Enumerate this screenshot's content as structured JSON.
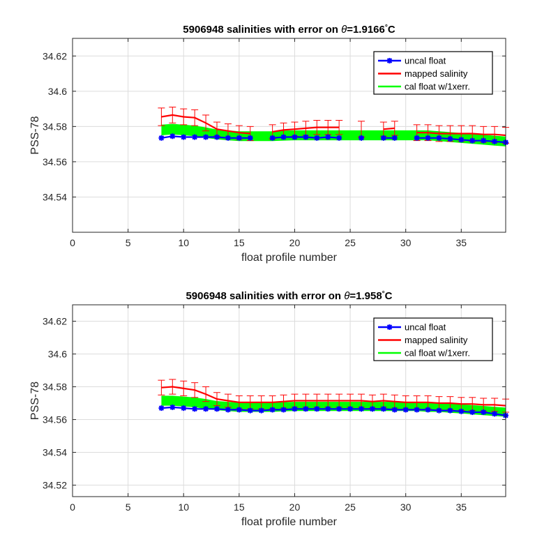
{
  "chart_data": [
    {
      "type": "line",
      "title_prefix": "5906948 salinities with error on ",
      "title_theta": "θ",
      "title_value": "=1.9166",
      "title_deg": "°",
      "title_unit": "C",
      "xlabel": "float profile number",
      "ylabel": "PSS-78",
      "xlim": [
        0,
        39
      ],
      "ylim": [
        34.52,
        34.63
      ],
      "xticks": [
        0,
        5,
        10,
        15,
        20,
        25,
        30,
        35
      ],
      "yticks": [
        34.54,
        34.56,
        34.58,
        34.6,
        34.62
      ],
      "ytick_labels": [
        "34.54",
        "34.56",
        "34.58",
        "34.6",
        "34.62"
      ],
      "grid": true,
      "legend_position": "top-right",
      "legend": [
        "uncal float",
        "mapped salinity",
        "cal float w/1xerr."
      ],
      "colors": {
        "uncal": "#0000ff",
        "mapped": "#ff0000",
        "cal": "#00ff00"
      },
      "x": [
        8,
        9,
        10,
        11,
        12,
        13,
        14,
        15,
        16,
        18,
        19,
        20,
        21,
        22,
        23,
        24,
        26,
        28,
        29,
        31,
        32,
        33,
        34,
        35,
        36,
        37,
        38,
        39
      ],
      "uncal_float": [
        34.5735,
        34.5745,
        34.574,
        34.574,
        34.574,
        34.574,
        34.5735,
        34.5735,
        34.5735,
        34.5735,
        34.574,
        34.574,
        34.574,
        34.5735,
        34.574,
        34.5735,
        34.5735,
        34.5735,
        34.5735,
        34.5735,
        34.5735,
        34.5735,
        34.573,
        34.5725,
        34.572,
        34.572,
        34.5715,
        34.571
      ],
      "mapped_salinity": [
        34.5855,
        34.5865,
        34.5855,
        34.585,
        34.582,
        34.5785,
        34.5775,
        34.5765,
        34.576,
        34.577,
        34.578,
        34.5785,
        34.579,
        34.5795,
        34.5795,
        34.5795,
        34.5785,
        34.5785,
        34.579,
        34.5765,
        34.5765,
        34.576,
        34.576,
        34.576,
        34.576,
        34.5755,
        34.5755,
        34.575
      ],
      "mapped_error": [
        0.005,
        0.0045,
        0.0045,
        0.0045,
        0.0045,
        0.004,
        0.004,
        0.004,
        0.004,
        0.004,
        0.004,
        0.004,
        0.004,
        0.004,
        0.004,
        0.004,
        0.0045,
        0.004,
        0.004,
        0.0045,
        0.0045,
        0.0045,
        0.0045,
        0.0045,
        0.0045,
        0.0045,
        0.0045,
        0.0045
      ],
      "cal_float": [
        34.578,
        34.5785,
        34.578,
        34.5775,
        34.5765,
        34.5755,
        34.575,
        34.5745,
        34.5745,
        34.5745,
        34.5748,
        34.575,
        34.575,
        34.575,
        34.575,
        34.575,
        34.575,
        34.575,
        34.575,
        34.575,
        34.575,
        34.5745,
        34.574,
        34.5735,
        34.573,
        34.5725,
        34.572,
        34.5715
      ],
      "cal_error": [
        0.003,
        0.003,
        0.003,
        0.003,
        0.003,
        0.0028,
        0.0028,
        0.0028,
        0.0028,
        0.0028,
        0.0028,
        0.0028,
        0.0028,
        0.0028,
        0.0028,
        0.0028,
        0.0028,
        0.0028,
        0.0028,
        0.0028,
        0.0028,
        0.0028,
        0.0028,
        0.0028,
        0.0028,
        0.0028,
        0.0028,
        0.0028
      ]
    },
    {
      "type": "line",
      "title_prefix": "5906948 salinities with error on ",
      "title_theta": "θ",
      "title_value": "=1.958",
      "title_deg": "°",
      "title_unit": "C",
      "xlabel": "float profile number",
      "ylabel": "PSS-78",
      "xlim": [
        0,
        39
      ],
      "ylim": [
        34.513,
        34.63
      ],
      "xticks": [
        0,
        5,
        10,
        15,
        20,
        25,
        30,
        35
      ],
      "yticks": [
        34.52,
        34.54,
        34.56,
        34.58,
        34.6,
        34.62
      ],
      "ytick_labels": [
        "34.52",
        "34.54",
        "34.56",
        "34.58",
        "34.6",
        "34.62"
      ],
      "grid": true,
      "legend_position": "top-right",
      "legend": [
        "uncal float",
        "mapped salinity",
        "cal float w/1xerr."
      ],
      "colors": {
        "uncal": "#0000ff",
        "mapped": "#ff0000",
        "cal": "#00ff00"
      },
      "x": [
        8,
        9,
        10,
        11,
        12,
        13,
        14,
        15,
        16,
        17,
        18,
        19,
        20,
        21,
        22,
        23,
        24,
        25,
        26,
        27,
        28,
        29,
        30,
        31,
        32,
        33,
        34,
        35,
        36,
        37,
        38,
        39
      ],
      "uncal_float": [
        34.567,
        34.5675,
        34.567,
        34.5665,
        34.5665,
        34.5665,
        34.566,
        34.566,
        34.5655,
        34.5655,
        34.566,
        34.566,
        34.5665,
        34.5665,
        34.5665,
        34.5665,
        34.5665,
        34.5665,
        34.5665,
        34.5665,
        34.5665,
        34.566,
        34.566,
        34.566,
        34.566,
        34.5655,
        34.5655,
        34.565,
        34.5645,
        34.5645,
        34.5635,
        34.5625
      ],
      "mapped_salinity": [
        34.5795,
        34.58,
        34.579,
        34.578,
        34.5755,
        34.5725,
        34.5715,
        34.5705,
        34.5705,
        34.5705,
        34.5705,
        34.571,
        34.5715,
        34.5715,
        34.5715,
        34.5715,
        34.5715,
        34.5715,
        34.5715,
        34.571,
        34.5715,
        34.571,
        34.5705,
        34.5705,
        34.5705,
        34.57,
        34.57,
        34.5695,
        34.5695,
        34.569,
        34.569,
        34.5685
      ],
      "mapped_error": [
        0.0045,
        0.0045,
        0.0045,
        0.0045,
        0.0045,
        0.004,
        0.004,
        0.004,
        0.004,
        0.004,
        0.004,
        0.004,
        0.004,
        0.004,
        0.004,
        0.004,
        0.004,
        0.004,
        0.004,
        0.004,
        0.004,
        0.004,
        0.004,
        0.004,
        0.004,
        0.004,
        0.004,
        0.004,
        0.004,
        0.004,
        0.004,
        0.004
      ],
      "cal_float": [
        34.5715,
        34.5715,
        34.571,
        34.5705,
        34.5695,
        34.5685,
        34.568,
        34.5675,
        34.5675,
        34.5675,
        34.5675,
        34.5678,
        34.568,
        34.568,
        34.568,
        34.568,
        34.568,
        34.568,
        34.568,
        34.568,
        34.568,
        34.568,
        34.568,
        34.568,
        34.5675,
        34.5675,
        34.567,
        34.5665,
        34.566,
        34.5655,
        34.565,
        34.5645
      ],
      "cal_error": [
        0.003,
        0.003,
        0.003,
        0.003,
        0.003,
        0.0028,
        0.0028,
        0.0028,
        0.0028,
        0.0028,
        0.0028,
        0.0028,
        0.0028,
        0.0028,
        0.0028,
        0.0028,
        0.0028,
        0.0028,
        0.0028,
        0.0028,
        0.0028,
        0.0028,
        0.0028,
        0.0028,
        0.0028,
        0.0028,
        0.0028,
        0.0028,
        0.0028,
        0.0028,
        0.0028,
        0.0028
      ]
    }
  ]
}
